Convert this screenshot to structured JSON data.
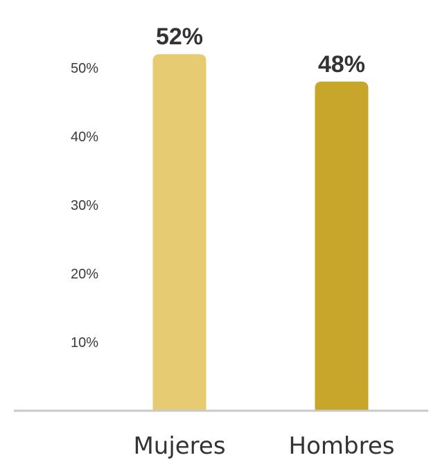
{
  "chart_data": {
    "type": "bar",
    "categories": [
      "Mujeres",
      "Hombres"
    ],
    "values": [
      52,
      48
    ],
    "data_labels": [
      "52%",
      "48%"
    ],
    "colors": [
      "#E6CB73",
      "#C8A62A"
    ],
    "axis_color": "#C8C8C8",
    "ylim": [
      0,
      54
    ],
    "yticks": [
      {
        "value": 10,
        "label": "10%"
      },
      {
        "value": 20,
        "label": "20%"
      },
      {
        "value": 30,
        "label": "30%"
      },
      {
        "value": 40,
        "label": "40%"
      },
      {
        "value": 50,
        "label": "50%"
      }
    ],
    "grid": false,
    "legend": "none"
  }
}
